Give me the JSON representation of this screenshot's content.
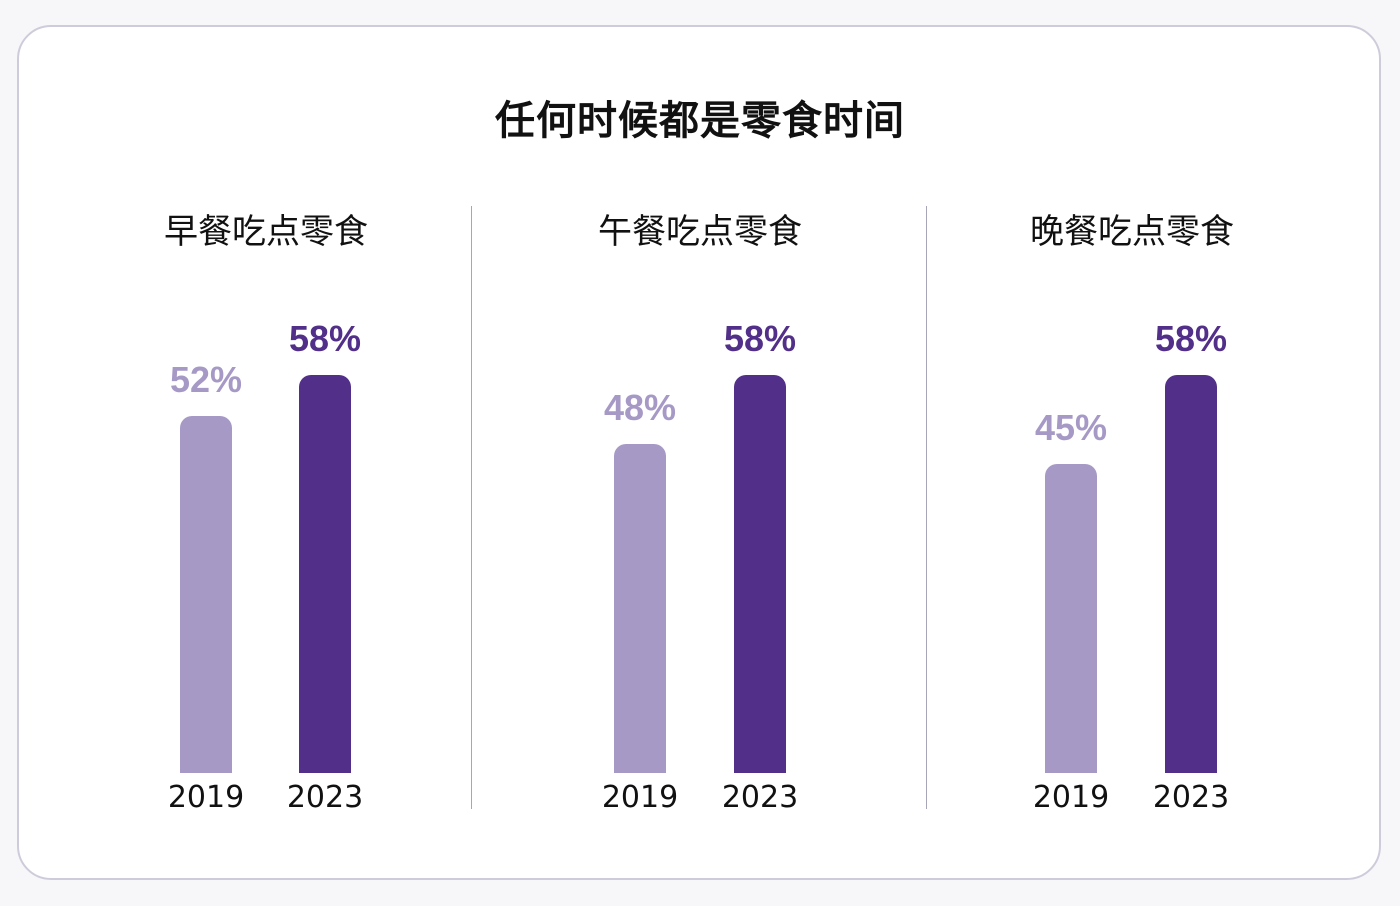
{
  "colors": {
    "year_2019": "#a699c6",
    "year_2023": "#522f88"
  },
  "chart_data": [
    {
      "type": "bar",
      "title": "早餐吃点零食",
      "categories": [
        "2019",
        "2023"
      ],
      "values": [
        52,
        58
      ],
      "value_labels": [
        "52%",
        "58%"
      ],
      "ylim": [
        0,
        58
      ]
    },
    {
      "type": "bar",
      "title": "午餐吃点零食",
      "categories": [
        "2019",
        "2023"
      ],
      "values": [
        48,
        58
      ],
      "value_labels": [
        "48%",
        "58%"
      ],
      "ylim": [
        0,
        58
      ]
    },
    {
      "type": "bar",
      "title": "晚餐吃点零食",
      "categories": [
        "2019",
        "2023"
      ],
      "values": [
        45,
        58
      ],
      "value_labels": [
        "45%",
        "58%"
      ],
      "ylim": [
        0,
        58
      ]
    }
  ],
  "title": "任何时候都是零食时间"
}
